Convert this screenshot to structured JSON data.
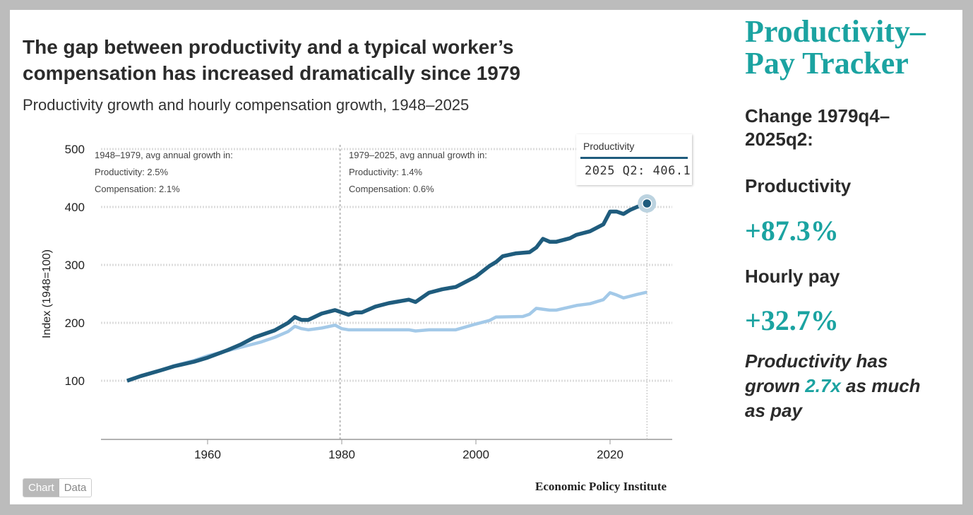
{
  "title_line1": "The gap between productivity and a typical worker’s",
  "title_line2": "compensation has increased dramatically since 1979",
  "subtitle": "Productivity growth and hourly compensation growth, 1948–2025",
  "annotations": {
    "left": [
      "1948–1979, avg annual growth in:",
      "Productivity: 2.5%",
      "Compensation: 2.1%"
    ],
    "right": [
      "1979–2025, avg annual growth in:",
      "Productivity: 1.4%",
      "Compensation: 0.6%"
    ]
  },
  "tooltip": {
    "series": "Productivity",
    "value": "2025 Q2: 406.1"
  },
  "toggle": {
    "chart": "Chart",
    "data": "Data"
  },
  "source": "Economic Policy Institute",
  "colors": {
    "productivity": "#1f5c7d",
    "compensation": "#a3c9e8",
    "accent": "#1ba3a1"
  },
  "sidebar": {
    "title_line1": "Productivity–",
    "title_line2": "Pay Tracker",
    "change_line1": "Change 1979q4–",
    "change_line2": "2025q2:",
    "prod_label": "Productivity",
    "prod_value": "+87.3%",
    "pay_label": "Hourly pay",
    "pay_value": "+32.7%",
    "note_a": "Productivity has",
    "note_b": "grown ",
    "note_hl": "2.7x",
    "note_c": " as much",
    "note_d": "as pay"
  },
  "chart_data": {
    "type": "line",
    "title": "The gap between productivity and a typical worker’s compensation has increased dramatically since 1979",
    "ylabel": "Index (1948=100)",
    "xlabel": "",
    "ylim": [
      0,
      500
    ],
    "xlim": [
      1944.5,
      2030
    ],
    "yticks": [
      100,
      200,
      300,
      400,
      500
    ],
    "xticks": [
      1960,
      1980,
      2000,
      2020
    ],
    "reference_line_x": 1979.75,
    "series": [
      {
        "name": "Productivity",
        "points": [
          [
            1948,
            100
          ],
          [
            1950,
            108
          ],
          [
            1953,
            118
          ],
          [
            1955,
            125
          ],
          [
            1958,
            133
          ],
          [
            1960,
            140
          ],
          [
            1963,
            153
          ],
          [
            1965,
            163
          ],
          [
            1967,
            175
          ],
          [
            1970,
            187
          ],
          [
            1972,
            200
          ],
          [
            1973,
            210
          ],
          [
            1974,
            205
          ],
          [
            1975,
            205
          ],
          [
            1977,
            216
          ],
          [
            1979,
            222
          ],
          [
            1980,
            218
          ],
          [
            1981,
            214
          ],
          [
            1982,
            218
          ],
          [
            1983,
            218
          ],
          [
            1985,
            228
          ],
          [
            1987,
            234
          ],
          [
            1990,
            240
          ],
          [
            1991,
            236
          ],
          [
            1993,
            252
          ],
          [
            1995,
            258
          ],
          [
            1997,
            262
          ],
          [
            2000,
            280
          ],
          [
            2002,
            298
          ],
          [
            2003,
            305
          ],
          [
            2004,
            315
          ],
          [
            2006,
            320
          ],
          [
            2008,
            322
          ],
          [
            2009,
            330
          ],
          [
            2010,
            345
          ],
          [
            2011,
            340
          ],
          [
            2012,
            340
          ],
          [
            2014,
            346
          ],
          [
            2015,
            352
          ],
          [
            2017,
            358
          ],
          [
            2019,
            370
          ],
          [
            2020,
            392
          ],
          [
            2021,
            392
          ],
          [
            2022,
            388
          ],
          [
            2023,
            395
          ],
          [
            2024,
            400
          ],
          [
            2025.5,
            406.1
          ]
        ]
      },
      {
        "name": "Compensation",
        "points": [
          [
            1948,
            100
          ],
          [
            1950,
            108
          ],
          [
            1953,
            118
          ],
          [
            1955,
            126
          ],
          [
            1958,
            135
          ],
          [
            1960,
            143
          ],
          [
            1963,
            152
          ],
          [
            1965,
            158
          ],
          [
            1968,
            167
          ],
          [
            1970,
            175
          ],
          [
            1972,
            185
          ],
          [
            1973,
            194
          ],
          [
            1974,
            190
          ],
          [
            1975,
            188
          ],
          [
            1977,
            191
          ],
          [
            1979,
            196
          ],
          [
            1980,
            190
          ],
          [
            1981,
            188
          ],
          [
            1985,
            188
          ],
          [
            1990,
            188
          ],
          [
            1991,
            186
          ],
          [
            1993,
            188
          ],
          [
            1995,
            188
          ],
          [
            1997,
            188
          ],
          [
            2000,
            198
          ],
          [
            2002,
            204
          ],
          [
            2003,
            210
          ],
          [
            2007,
            211
          ],
          [
            2008,
            215
          ],
          [
            2009,
            225
          ],
          [
            2011,
            222
          ],
          [
            2012,
            222
          ],
          [
            2015,
            230
          ],
          [
            2017,
            233
          ],
          [
            2019,
            240
          ],
          [
            2020,
            252
          ],
          [
            2021,
            248
          ],
          [
            2022,
            243
          ],
          [
            2024,
            249
          ],
          [
            2025.5,
            253
          ]
        ]
      }
    ],
    "highlight": {
      "series": "Productivity",
      "x": 2025.5,
      "y": 406.1,
      "label": "2025 Q2: 406.1"
    }
  }
}
